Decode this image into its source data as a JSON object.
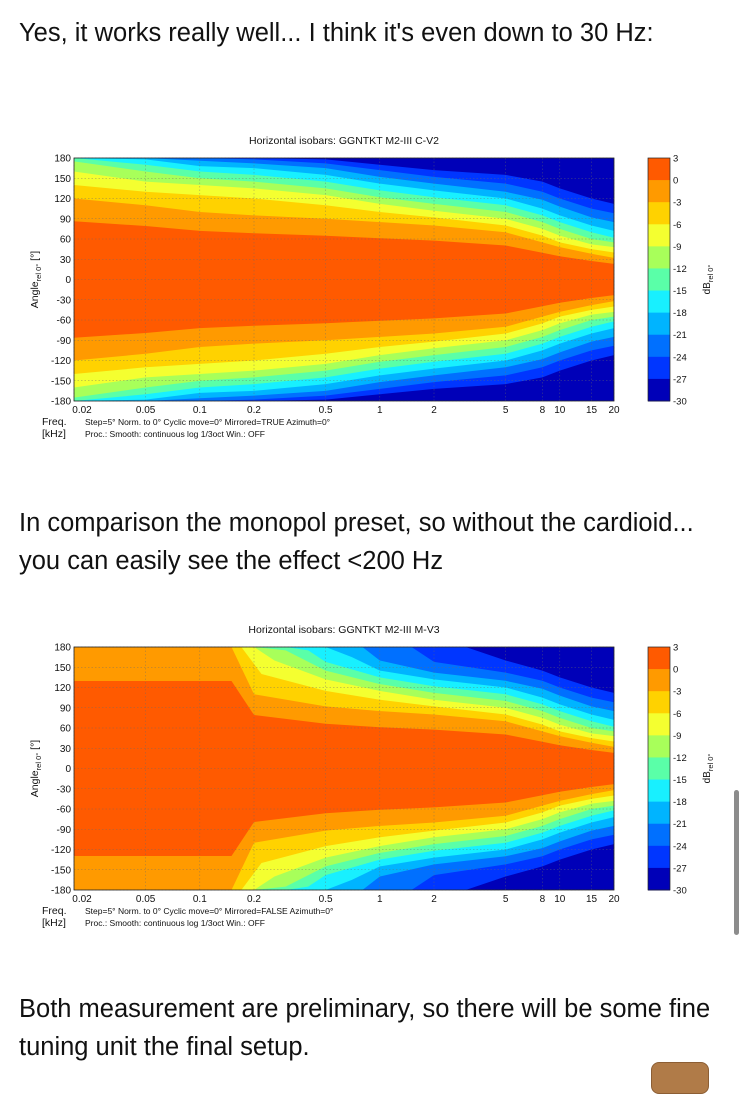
{
  "post": {
    "paragraph1": "Yes, it works really well... I think it's even down to 30 Hz:",
    "paragraph2": "In comparison the monopol preset, so without the cardioid... you can easily see the effect <200 Hz",
    "paragraph3": "Both measurement are preliminary, so there will be some fine tuning unit the final setup."
  },
  "chart_data": [
    {
      "type": "heatmap",
      "title": "Horizontal isobars: GGNTKT  M2-III  C-V2",
      "xlabel": "Freq.",
      "xunit": "[kHz]",
      "ylabel_main": "Angle",
      "ylabel_sub": "rel 0°",
      "ylabel_unit": "[°]",
      "x_scale": "log",
      "xlim": [
        0.02,
        20
      ],
      "ylim": [
        -180,
        180
      ],
      "x_ticks": [
        "0.02",
        "0.05",
        "0.1",
        "0.2",
        "0.5",
        "1",
        "2",
        "5",
        "8",
        "10",
        "15",
        "20"
      ],
      "x_tick_values": [
        0.02,
        0.05,
        0.1,
        0.2,
        0.5,
        1,
        2,
        5,
        8,
        10,
        15,
        20
      ],
      "y_ticks": [
        "180",
        "150",
        "120",
        "90",
        "60",
        "30",
        "0",
        "-30",
        "-60",
        "-90",
        "-120",
        "-150",
        "-180"
      ],
      "y_tick_values": [
        180,
        150,
        120,
        90,
        60,
        30,
        0,
        -30,
        -60,
        -90,
        -120,
        -150,
        -180
      ],
      "colorbar_label": "dB",
      "colorbar_sub": "rel 0°",
      "colorbar_ticks": [
        "3",
        "0",
        "-3",
        "-6",
        "-9",
        "-12",
        "-15",
        "-18",
        "-21",
        "-24",
        "-27",
        "-30"
      ],
      "colorbar_values": [
        3,
        0,
        -3,
        -6,
        -9,
        -12,
        -15,
        -18,
        -21,
        -24,
        -27,
        -30
      ],
      "footer_line1": "Step=5°  Norm. to 0°  Cyclic move=0°  Mirrored=TRUE  Azimuth=0°",
      "footer_line2": "Proc.: Smooth: continuous log 1/3oct   Win.: OFF",
      "grid": true,
      "mirrored": true,
      "contour_levels": [
        {
          "level": -3,
          "angle_by_freq": [
            [
              0.02,
              120
            ],
            [
              0.05,
              110
            ],
            [
              0.1,
              100
            ],
            [
              0.2,
              95
            ],
            [
              0.5,
              90
            ],
            [
              1,
              85
            ],
            [
              2,
              80
            ],
            [
              5,
              70
            ],
            [
              8,
              55
            ],
            [
              10,
              48
            ],
            [
              15,
              38
            ],
            [
              20,
              32
            ]
          ]
        },
        {
          "level": -6,
          "angle_by_freq": [
            [
              0.02,
              140
            ],
            [
              0.05,
              130
            ],
            [
              0.1,
              125
            ],
            [
              0.2,
              120
            ],
            [
              0.5,
              110
            ],
            [
              1,
              100
            ],
            [
              2,
              92
            ],
            [
              5,
              80
            ],
            [
              8,
              65
            ],
            [
              10,
              55
            ],
            [
              15,
              45
            ],
            [
              20,
              40
            ]
          ]
        },
        {
          "level": -9,
          "angle_by_freq": [
            [
              0.02,
              160
            ],
            [
              0.05,
              145
            ],
            [
              0.1,
              140
            ],
            [
              0.2,
              135
            ],
            [
              0.5,
              125
            ],
            [
              1,
              112
            ],
            [
              2,
              102
            ],
            [
              5,
              90
            ],
            [
              8,
              75
            ],
            [
              10,
              65
            ],
            [
              15,
              52
            ],
            [
              20,
              48
            ]
          ]
        },
        {
          "level": -12,
          "angle_by_freq": [
            [
              0.02,
              175
            ],
            [
              0.05,
              160
            ],
            [
              0.1,
              150
            ],
            [
              0.2,
              145
            ],
            [
              0.5,
              135
            ],
            [
              1,
              122
            ],
            [
              2,
              112
            ],
            [
              5,
              100
            ],
            [
              8,
              85
            ],
            [
              10,
              75
            ],
            [
              15,
              60
            ],
            [
              20,
              55
            ]
          ]
        },
        {
          "level": -15,
          "angle_by_freq": [
            [
              0.02,
              180
            ],
            [
              0.05,
              170
            ],
            [
              0.1,
              160
            ],
            [
              0.2,
              155
            ],
            [
              0.5,
              145
            ],
            [
              1,
              132
            ],
            [
              2,
              122
            ],
            [
              5,
              110
            ],
            [
              8,
              95
            ],
            [
              10,
              85
            ],
            [
              15,
              70
            ],
            [
              20,
              62
            ]
          ]
        },
        {
          "level": -18,
          "angle_by_freq": [
            [
              0.02,
              180
            ],
            [
              0.05,
              178
            ],
            [
              0.1,
              168
            ],
            [
              0.2,
              165
            ],
            [
              0.5,
              155
            ],
            [
              1,
              142
            ],
            [
              2,
              132
            ],
            [
              5,
              120
            ],
            [
              8,
              105
            ],
            [
              10,
              95
            ],
            [
              15,
              80
            ],
            [
              20,
              72
            ]
          ]
        },
        {
          "level": -21,
          "angle_by_freq": [
            [
              0.02,
              180
            ],
            [
              0.05,
              180
            ],
            [
              0.1,
              176
            ],
            [
              0.2,
              172
            ],
            [
              0.5,
              165
            ],
            [
              1,
              152
            ],
            [
              2,
              142
            ],
            [
              5,
              130
            ],
            [
              8,
              118
            ],
            [
              10,
              108
            ],
            [
              15,
              92
            ],
            [
              20,
              85
            ]
          ]
        },
        {
          "level": -24,
          "angle_by_freq": [
            [
              0.02,
              180
            ],
            [
              0.05,
              180
            ],
            [
              0.1,
              180
            ],
            [
              0.2,
              178
            ],
            [
              0.5,
              172
            ],
            [
              1,
              162
            ],
            [
              2,
              152
            ],
            [
              5,
              142
            ],
            [
              8,
              130
            ],
            [
              10,
              120
            ],
            [
              15,
              105
            ],
            [
              20,
              98
            ]
          ]
        },
        {
          "level": -27,
          "angle_by_freq": [
            [
              0.02,
              180
            ],
            [
              0.05,
              180
            ],
            [
              0.1,
              180
            ],
            [
              0.2,
              180
            ],
            [
              0.5,
              178
            ],
            [
              1,
              170
            ],
            [
              2,
              162
            ],
            [
              5,
              155
            ],
            [
              8,
              145
            ],
            [
              10,
              135
            ],
            [
              15,
              120
            ],
            [
              20,
              112
            ]
          ]
        }
      ],
      "color_levels": [
        "#ff5a00",
        "#ff9a00",
        "#ffd200",
        "#f4ff30",
        "#a8ff5a",
        "#5affa8",
        "#18f0ff",
        "#00b4ff",
        "#0070ff",
        "#0036ff",
        "#0000b8"
      ]
    },
    {
      "type": "heatmap",
      "title": "Horizontal isobars: GGNTKT  M2-III  M-V3",
      "xlabel": "Freq.",
      "xunit": "[kHz]",
      "ylabel_main": "Angle",
      "ylabel_sub": "rel 0°",
      "ylabel_unit": "[°]",
      "x_scale": "log",
      "xlim": [
        0.02,
        20
      ],
      "ylim": [
        -180,
        180
      ],
      "x_ticks": [
        "0.02",
        "0.05",
        "0.1",
        "0.2",
        "0.5",
        "1",
        "2",
        "5",
        "8",
        "10",
        "15",
        "20"
      ],
      "x_tick_values": [
        0.02,
        0.05,
        0.1,
        0.2,
        0.5,
        1,
        2,
        5,
        8,
        10,
        15,
        20
      ],
      "y_ticks": [
        "180",
        "150",
        "120",
        "90",
        "60",
        "30",
        "0",
        "-30",
        "-60",
        "-90",
        "-120",
        "-150",
        "-180"
      ],
      "y_tick_values": [
        180,
        150,
        120,
        90,
        60,
        30,
        0,
        -30,
        -60,
        -90,
        -120,
        -150,
        -180
      ],
      "colorbar_label": "dB",
      "colorbar_sub": "rel 0°",
      "colorbar_ticks": [
        "3",
        "0",
        "-3",
        "-6",
        "-9",
        "-12",
        "-15",
        "-18",
        "-21",
        "-24",
        "-27",
        "-30"
      ],
      "colorbar_values": [
        3,
        0,
        -3,
        -6,
        -9,
        -12,
        -15,
        -18,
        -21,
        -24,
        -27,
        -30
      ],
      "footer_line1": "Step=5°  Norm. to 0°  Cyclic move=0°  Mirrored=FALSE  Azimuth=0°",
      "footer_line2": "Proc.: Smooth: continuous log 1/3oct   Win.: OFF",
      "grid": true,
      "mirrored": false,
      "contour_levels": [
        {
          "level": -3,
          "angle_by_freq": [
            [
              0.02,
              180
            ],
            [
              0.1,
              180
            ],
            [
              0.15,
              180
            ],
            [
              0.2,
              110
            ],
            [
              0.5,
              92
            ],
            [
              1,
              85
            ],
            [
              2,
              80
            ],
            [
              5,
              70
            ],
            [
              8,
              55
            ],
            [
              10,
              48
            ],
            [
              15,
              38
            ],
            [
              20,
              32
            ]
          ]
        },
        {
          "level": -6,
          "angle_by_freq": [
            [
              0.02,
              180
            ],
            [
              0.1,
              180
            ],
            [
              0.17,
              180
            ],
            [
              0.22,
              140
            ],
            [
              0.5,
              115
            ],
            [
              1,
              102
            ],
            [
              2,
              92
            ],
            [
              5,
              80
            ],
            [
              8,
              65
            ],
            [
              10,
              55
            ],
            [
              15,
              45
            ],
            [
              20,
              40
            ]
          ]
        },
        {
          "level": -9,
          "angle_by_freq": [
            [
              0.02,
              180
            ],
            [
              0.1,
              180
            ],
            [
              0.2,
              180
            ],
            [
              0.26,
              160
            ],
            [
              0.5,
              132
            ],
            [
              1,
              115
            ],
            [
              2,
              102
            ],
            [
              5,
              90
            ],
            [
              8,
              75
            ],
            [
              10,
              65
            ],
            [
              15,
              52
            ],
            [
              20,
              48
            ]
          ]
        },
        {
          "level": -12,
          "angle_by_freq": [
            [
              0.02,
              180
            ],
            [
              0.2,
              180
            ],
            [
              0.3,
              175
            ],
            [
              0.5,
              145
            ],
            [
              1,
              125
            ],
            [
              2,
              112
            ],
            [
              5,
              100
            ],
            [
              8,
              85
            ],
            [
              10,
              75
            ],
            [
              15,
              60
            ],
            [
              20,
              55
            ]
          ]
        },
        {
          "level": -15,
          "angle_by_freq": [
            [
              0.02,
              180
            ],
            [
              0.3,
              180
            ],
            [
              0.4,
              175
            ],
            [
              0.5,
              158
            ],
            [
              1,
              135
            ],
            [
              2,
              122
            ],
            [
              5,
              110
            ],
            [
              8,
              95
            ],
            [
              10,
              85
            ],
            [
              15,
              70
            ],
            [
              20,
              62
            ]
          ]
        },
        {
          "level": -18,
          "angle_by_freq": [
            [
              0.02,
              180
            ],
            [
              0.5,
              180
            ],
            [
              0.7,
              165
            ],
            [
              1,
              145
            ],
            [
              2,
              132
            ],
            [
              5,
              120
            ],
            [
              8,
              105
            ],
            [
              10,
              95
            ],
            [
              15,
              80
            ],
            [
              20,
              72
            ]
          ]
        },
        {
          "level": -21,
          "angle_by_freq": [
            [
              0.02,
              180
            ],
            [
              0.8,
              180
            ],
            [
              1,
              160
            ],
            [
              2,
              142
            ],
            [
              5,
              130
            ],
            [
              8,
              118
            ],
            [
              10,
              108
            ],
            [
              15,
              92
            ],
            [
              20,
              85
            ]
          ]
        },
        {
          "level": -24,
          "angle_by_freq": [
            [
              0.02,
              180
            ],
            [
              1.5,
              180
            ],
            [
              2,
              158
            ],
            [
              5,
              142
            ],
            [
              8,
              130
            ],
            [
              10,
              120
            ],
            [
              15,
              105
            ],
            [
              20,
              98
            ]
          ]
        },
        {
          "level": -27,
          "angle_by_freq": [
            [
              0.02,
              180
            ],
            [
              3,
              180
            ],
            [
              5,
              160
            ],
            [
              8,
              145
            ],
            [
              10,
              135
            ],
            [
              15,
              120
            ],
            [
              20,
              112
            ]
          ]
        }
      ],
      "color_levels": [
        "#ff5a00",
        "#ff9a00",
        "#ffd200",
        "#f4ff30",
        "#a8ff5a",
        "#5affa8",
        "#18f0ff",
        "#00b4ff",
        "#0070ff",
        "#0036ff",
        "#0000b8"
      ]
    }
  ]
}
